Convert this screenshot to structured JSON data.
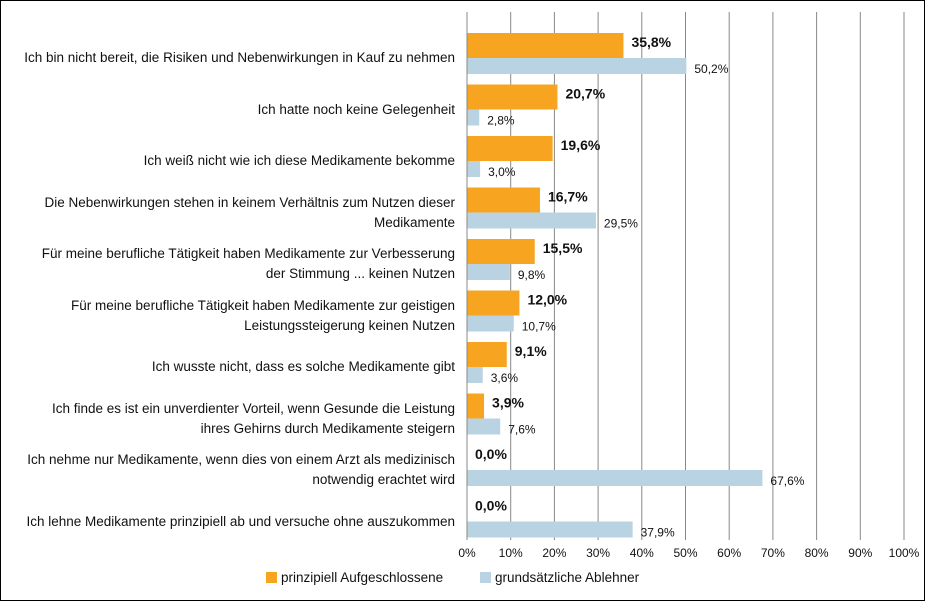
{
  "chart_data": {
    "type": "bar",
    "orientation": "horizontal",
    "categories": [
      "Ich bin nicht bereit, die Risiken und Nebenwirkungen in Kauf zu nehmen",
      "Ich hatte noch keine Gelegenheit",
      "Ich weiß nicht wie ich diese Medikamente bekomme",
      "Die Nebenwirkungen stehen in keinem Verhältnis zum Nutzen dieser Medikamente",
      "Für meine berufliche Tätigkeit haben Medikamente zur Verbesserung der Stimmung ... keinen Nutzen",
      "Für meine berufliche Tätigkeit haben Medikamente zur geistigen Leistungssteigerung keinen Nutzen",
      "Ich wusste nicht, dass es solche Medikamente gibt",
      "Ich finde es ist ein unverdienter Vorteil, wenn Gesunde die Leistung ihres Gehirns durch Medikamente steigern",
      "Ich nehme nur Medikamente, wenn dies von einem Arzt als medizinisch notwendig erachtet wird",
      "Ich lehne Medikamente prinzipiell ab und versuche ohne auszukommen"
    ],
    "series": [
      {
        "name": "prinzipiell Aufgeschlossene",
        "color": "#f7a521",
        "values": [
          35.8,
          20.7,
          19.6,
          16.7,
          15.5,
          12.0,
          9.1,
          3.9,
          0.0,
          0.0
        ],
        "value_labels": [
          "35,8%",
          "20,7%",
          "19,6%",
          "16,7%",
          "15,5%",
          "12,0%",
          "9,1%",
          "3,9%",
          "0,0%",
          "0,0%"
        ]
      },
      {
        "name": "grundsätzliche Ablehner",
        "color": "#b9d3e2",
        "values": [
          50.2,
          2.8,
          3.0,
          29.5,
          9.8,
          10.7,
          3.6,
          7.6,
          67.6,
          37.9
        ],
        "value_labels": [
          "50,2%",
          "2,8%",
          "3,0%",
          "29,5%",
          "9,8%",
          "10,7%",
          "3,6%",
          "7,6%",
          "67,6%",
          "37,9%"
        ]
      }
    ],
    "xlim": [
      0,
      100
    ],
    "xticks": [
      {
        "value": 0,
        "label": "0%"
      },
      {
        "value": 10,
        "label": "10%"
      },
      {
        "value": 20,
        "label": "20%"
      },
      {
        "value": 30,
        "label": "30%"
      },
      {
        "value": 40,
        "label": "40%"
      },
      {
        "value": 50,
        "label": "50%"
      },
      {
        "value": 60,
        "label": "60%"
      },
      {
        "value": 70,
        "label": "70%"
      },
      {
        "value": 80,
        "label": "80%"
      },
      {
        "value": 90,
        "label": "90%"
      },
      {
        "value": 100,
        "label": "100%"
      }
    ],
    "grid": true,
    "legend": "bottom"
  }
}
